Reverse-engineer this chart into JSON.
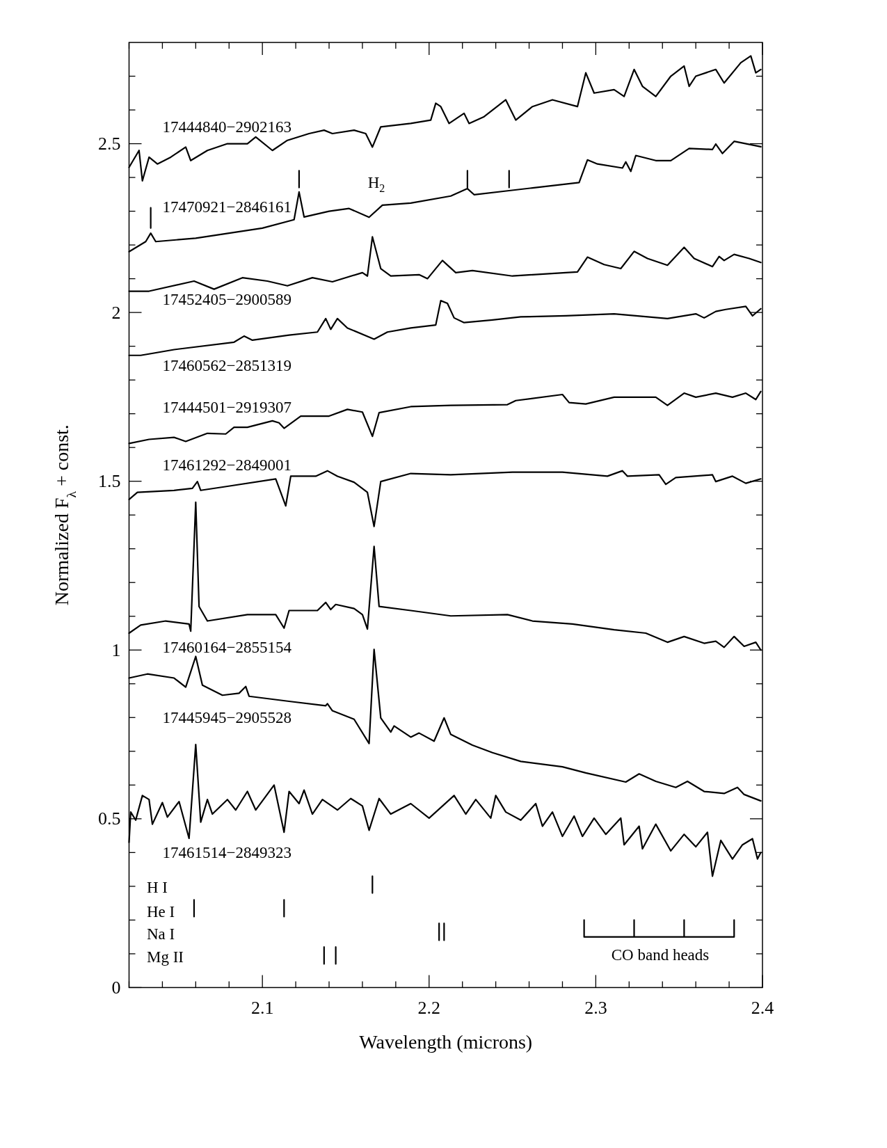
{
  "chart_data": {
    "type": "line",
    "xlabel": "Wavelength (microns)",
    "ylabel": "Normalized F$_{λ}$ + const.",
    "xlim": [
      2.02,
      2.4
    ],
    "ylim": [
      0,
      2.8
    ],
    "xticks": [
      {
        "value": 2.02,
        "label": null
      },
      {
        "value": 2.04,
        "label": null
      },
      {
        "value": 2.06,
        "label": null
      },
      {
        "value": 2.08,
        "label": null
      },
      2.1,
      {
        "value": 2.12,
        "label": null
      },
      {
        "value": 2.14,
        "label": null
      },
      {
        "value": 2.16,
        "label": null
      },
      {
        "value": 2.18,
        "label": null
      },
      2.2,
      {
        "value": 2.22,
        "label": null
      },
      {
        "value": 2.24,
        "label": null
      },
      {
        "value": 2.26,
        "label": null
      },
      {
        "value": 2.28,
        "label": null
      },
      2.3,
      {
        "value": 2.32,
        "label": null
      },
      {
        "value": 2.34,
        "label": null
      },
      {
        "value": 2.36,
        "label": null
      },
      {
        "value": 2.38,
        "label": null
      },
      2.4
    ],
    "yticks": [
      0,
      {
        "value": 0.1,
        "label": null
      },
      {
        "value": 0.2,
        "label": null
      },
      {
        "value": 0.3,
        "label": null
      },
      {
        "value": 0.4,
        "label": null
      },
      0.5,
      {
        "value": 0.6,
        "label": null
      },
      {
        "value": 0.7,
        "label": null
      },
      {
        "value": 0.8,
        "label": null
      },
      {
        "value": 0.9,
        "label": null
      },
      1,
      {
        "value": 1.1,
        "label": null
      },
      {
        "value": 1.2,
        "label": null
      },
      {
        "value": 1.3,
        "label": null
      },
      {
        "value": 1.4,
        "label": null
      },
      1.5,
      {
        "value": 1.6,
        "label": null
      },
      {
        "value": 1.7,
        "label": null
      },
      {
        "value": 1.8,
        "label": null
      },
      {
        "value": 1.9,
        "label": null
      },
      2,
      {
        "value": 2.1,
        "label": null
      },
      {
        "value": 2.2,
        "label": null
      },
      {
        "value": 2.3,
        "label": null
      },
      {
        "value": 2.4,
        "label": null
      },
      2.5,
      {
        "value": 2.6,
        "label": null
      },
      {
        "value": 2.7,
        "label": null
      }
    ],
    "series": [
      {
        "name": "17444840−2902163",
        "color": "#000000",
        "x": [
          2.02,
          2.026,
          2.028,
          2.032,
          2.037,
          2.045,
          2.054,
          2.057,
          2.067,
          2.079,
          2.091,
          2.096,
          2.106,
          2.115,
          2.128,
          2.137,
          2.142,
          2.155,
          2.162,
          2.166,
          2.171,
          2.189,
          2.201,
          2.204,
          2.207,
          2.212,
          2.221,
          2.224,
          2.233,
          2.246,
          2.252,
          2.262,
          2.274,
          2.289,
          2.294,
          2.299,
          2.311,
          2.317,
          2.323,
          2.328,
          2.336,
          2.345,
          2.353,
          2.356,
          2.36,
          2.372,
          2.377,
          2.387,
          2.393,
          2.396,
          2.399
        ],
        "values": [
          2.43,
          2.48,
          2.39,
          2.46,
          2.44,
          2.46,
          2.49,
          2.45,
          2.48,
          2.5,
          2.5,
          2.52,
          2.48,
          2.51,
          2.53,
          2.54,
          2.53,
          2.54,
          2.53,
          2.49,
          2.55,
          2.56,
          2.57,
          2.62,
          2.61,
          2.56,
          2.59,
          2.56,
          2.58,
          2.63,
          2.57,
          2.61,
          2.63,
          2.61,
          2.71,
          2.65,
          2.66,
          2.64,
          2.72,
          2.67,
          2.64,
          2.7,
          2.73,
          2.67,
          2.7,
          2.72,
          2.68,
          2.74,
          2.76,
          2.71,
          2.72
        ]
      },
      {
        "name": "17470921−2846161",
        "color": "#000000",
        "x": [
          2.02,
          2.03,
          2.033,
          2.036,
          2.06,
          2.1,
          2.119,
          2.122,
          2.125,
          2.14,
          2.152,
          2.164,
          2.172,
          2.189,
          2.213,
          2.223,
          2.227,
          2.248,
          2.262,
          2.29,
          2.295,
          2.301,
          2.316,
          2.318,
          2.321,
          2.324,
          2.336,
          2.345,
          2.356,
          2.37,
          2.372,
          2.376,
          2.383,
          2.399
        ],
        "values": [
          2.18,
          2.21,
          2.235,
          2.21,
          2.22,
          2.25,
          2.275,
          2.357,
          2.283,
          2.3,
          2.308,
          2.282,
          2.318,
          2.324,
          2.345,
          2.367,
          2.349,
          2.361,
          2.369,
          2.385,
          2.452,
          2.44,
          2.428,
          2.446,
          2.418,
          2.465,
          2.45,
          2.45,
          2.486,
          2.483,
          2.499,
          2.471,
          2.507,
          2.491
        ]
      },
      {
        "name": "17452405−2900589",
        "color": "#000000",
        "x": [
          2.02,
          2.032,
          2.059,
          2.071,
          2.088,
          2.103,
          2.115,
          2.13,
          2.142,
          2.16,
          2.163,
          2.166,
          2.171,
          2.177,
          2.194,
          2.199,
          2.208,
          2.216,
          2.226,
          2.25,
          2.262,
          2.282,
          2.289,
          2.295,
          2.305,
          2.315,
          2.323,
          2.331,
          2.343,
          2.353,
          2.359,
          2.37,
          2.374,
          2.377,
          2.383,
          2.392,
          2.399
        ],
        "values": [
          2.063,
          2.063,
          2.093,
          2.069,
          2.103,
          2.093,
          2.079,
          2.103,
          2.091,
          2.118,
          2.108,
          2.224,
          2.13,
          2.108,
          2.112,
          2.1,
          2.154,
          2.118,
          2.124,
          2.108,
          2.112,
          2.118,
          2.12,
          2.164,
          2.142,
          2.13,
          2.181,
          2.16,
          2.14,
          2.193,
          2.16,
          2.136,
          2.166,
          2.154,
          2.172,
          2.16,
          2.148
        ]
      },
      {
        "name": "17460562−2851319",
        "color": "#000000",
        "x": [
          2.02,
          2.027,
          2.047,
          2.083,
          2.089,
          2.094,
          2.116,
          2.133,
          2.138,
          2.141,
          2.145,
          2.151,
          2.167,
          2.175,
          2.189,
          2.204,
          2.207,
          2.211,
          2.215,
          2.221,
          2.238,
          2.255,
          2.282,
          2.311,
          2.343,
          2.36,
          2.365,
          2.372,
          2.378,
          2.39,
          2.394,
          2.399
        ],
        "values": [
          1.873,
          1.873,
          1.89,
          1.912,
          1.93,
          1.918,
          1.933,
          1.942,
          1.982,
          1.95,
          1.982,
          1.954,
          1.921,
          1.942,
          1.954,
          1.963,
          2.035,
          2.027,
          1.984,
          1.97,
          1.978,
          1.987,
          1.99,
          1.996,
          1.982,
          1.996,
          1.984,
          2.003,
          2.009,
          2.018,
          1.99,
          2.011
        ]
      },
      {
        "name": "17444501−2919307",
        "color": "#000000",
        "x": [
          2.02,
          2.032,
          2.047,
          2.054,
          2.067,
          2.078,
          2.083,
          2.091,
          2.106,
          2.11,
          2.113,
          2.123,
          2.14,
          2.151,
          2.16,
          2.166,
          2.17,
          2.189,
          2.213,
          2.247,
          2.252,
          2.28,
          2.284,
          2.294,
          2.311,
          2.336,
          2.343,
          2.353,
          2.36,
          2.372,
          2.382,
          2.39,
          2.396,
          2.399
        ],
        "values": [
          1.612,
          1.624,
          1.63,
          1.618,
          1.642,
          1.64,
          1.66,
          1.66,
          1.679,
          1.673,
          1.657,
          1.693,
          1.693,
          1.713,
          1.705,
          1.633,
          1.703,
          1.721,
          1.725,
          1.727,
          1.739,
          1.757,
          1.733,
          1.729,
          1.749,
          1.749,
          1.725,
          1.761,
          1.749,
          1.761,
          1.749,
          1.761,
          1.742,
          1.766
        ]
      },
      {
        "name": "17461292−2849001",
        "color": "#000000",
        "x": [
          2.02,
          2.025,
          2.047,
          2.058,
          2.061,
          2.063,
          2.079,
          2.108,
          2.114,
          2.117,
          2.132,
          2.139,
          2.145,
          2.155,
          2.163,
          2.167,
          2.171,
          2.189,
          2.213,
          2.25,
          2.28,
          2.307,
          2.316,
          2.319,
          2.338,
          2.342,
          2.348,
          2.37,
          2.372,
          2.382,
          2.39,
          2.399
        ],
        "values": [
          1.446,
          1.467,
          1.473,
          1.479,
          1.499,
          1.473,
          1.485,
          1.507,
          1.427,
          1.515,
          1.515,
          1.531,
          1.515,
          1.497,
          1.467,
          1.366,
          1.499,
          1.523,
          1.519,
          1.527,
          1.527,
          1.515,
          1.531,
          1.515,
          1.519,
          1.491,
          1.511,
          1.519,
          1.499,
          1.515,
          1.494,
          1.507
        ]
      },
      {
        "name": "17460164−2855154",
        "color": "#000000",
        "x": [
          2.02,
          2.027,
          2.042,
          2.056,
          2.057,
          2.06,
          2.062,
          2.067,
          2.091,
          2.108,
          2.113,
          2.116,
          2.133,
          2.138,
          2.141,
          2.144,
          2.155,
          2.16,
          2.163,
          2.167,
          2.17,
          2.189,
          2.213,
          2.247,
          2.262,
          2.286,
          2.311,
          2.33,
          2.343,
          2.353,
          2.365,
          2.372,
          2.377,
          2.383,
          2.389,
          2.396,
          2.399
        ],
        "values": [
          1.05,
          1.074,
          1.086,
          1.077,
          1.056,
          1.438,
          1.129,
          1.086,
          1.105,
          1.105,
          1.065,
          1.117,
          1.117,
          1.141,
          1.12,
          1.135,
          1.123,
          1.105,
          1.062,
          1.307,
          1.129,
          1.117,
          1.101,
          1.105,
          1.086,
          1.077,
          1.06,
          1.05,
          1.023,
          1.04,
          1.02,
          1.026,
          1.008,
          1.04,
          1.011,
          1.023,
          1.0
        ]
      },
      {
        "name": "17445945−2905528",
        "color": "#000000",
        "x": [
          2.02,
          2.031,
          2.047,
          2.054,
          2.06,
          2.064,
          2.076,
          2.086,
          2.09,
          2.092,
          2.116,
          2.138,
          2.139,
          2.142,
          2.155,
          2.164,
          2.167,
          2.171,
          2.177,
          2.179,
          2.189,
          2.194,
          2.203,
          2.209,
          2.213,
          2.226,
          2.238,
          2.255,
          2.28,
          2.294,
          2.318,
          2.326,
          2.336,
          2.348,
          2.355,
          2.365,
          2.377,
          2.385,
          2.389,
          2.399
        ],
        "values": [
          0.917,
          0.929,
          0.917,
          0.89,
          0.981,
          0.896,
          0.866,
          0.872,
          0.892,
          0.863,
          0.848,
          0.835,
          0.841,
          0.82,
          0.795,
          0.723,
          1.002,
          0.799,
          0.757,
          0.775,
          0.742,
          0.754,
          0.73,
          0.799,
          0.75,
          0.718,
          0.696,
          0.67,
          0.654,
          0.636,
          0.609,
          0.633,
          0.611,
          0.593,
          0.611,
          0.581,
          0.575,
          0.593,
          0.572,
          0.553
        ]
      },
      {
        "name": "17461514−2849323",
        "color": "#000000",
        "x": [
          2.02,
          2.021,
          2.024,
          2.028,
          2.032,
          2.034,
          2.04,
          2.043,
          2.05,
          2.056,
          2.06,
          2.063,
          2.067,
          2.07,
          2.079,
          2.084,
          2.091,
          2.096,
          2.107,
          2.113,
          2.116,
          2.122,
          2.125,
          2.13,
          2.136,
          2.145,
          2.153,
          2.16,
          2.164,
          2.17,
          2.177,
          2.189,
          2.2,
          2.215,
          2.222,
          2.228,
          2.237,
          2.24,
          2.246,
          2.255,
          2.264,
          2.268,
          2.274,
          2.28,
          2.287,
          2.292,
          2.299,
          2.306,
          2.315,
          2.317,
          2.326,
          2.328,
          2.336,
          2.345,
          2.353,
          2.36,
          2.367,
          2.37,
          2.375,
          2.382,
          2.388,
          2.394,
          2.397,
          2.399
        ],
        "values": [
          0.43,
          0.52,
          0.496,
          0.569,
          0.557,
          0.484,
          0.548,
          0.505,
          0.551,
          0.442,
          0.72,
          0.49,
          0.557,
          0.514,
          0.557,
          0.526,
          0.581,
          0.526,
          0.6,
          0.46,
          0.581,
          0.545,
          0.585,
          0.514,
          0.557,
          0.526,
          0.56,
          0.538,
          0.466,
          0.56,
          0.514,
          0.545,
          0.502,
          0.569,
          0.514,
          0.557,
          0.502,
          0.569,
          0.52,
          0.496,
          0.545,
          0.478,
          0.52,
          0.448,
          0.508,
          0.448,
          0.502,
          0.454,
          0.502,
          0.423,
          0.478,
          0.411,
          0.484,
          0.405,
          0.454,
          0.417,
          0.46,
          0.33,
          0.436,
          0.381,
          0.423,
          0.441,
          0.381,
          0.4
        ]
      },
      {
        "color": "#000000",
        "x": [
          2.033,
          2.033,
          null,
          2.122,
          2.122,
          null,
          2.223,
          2.223,
          null,
          2.248,
          2.248
        ],
        "values": [
          2.25,
          2.31,
          null,
          2.37,
          2.42,
          null,
          2.37,
          2.42,
          null,
          2.37,
          2.42
        ]
      },
      {
        "color": "#000000",
        "x": [
          2.166,
          2.166,
          null,
          2.059,
          2.059,
          null,
          2.113,
          2.113,
          null,
          2.206,
          2.206,
          null,
          2.209,
          2.209,
          null,
          2.137,
          2.137,
          null,
          2.144,
          2.144,
          null,
          2.293,
          2.293,
          2.383,
          2.383,
          null,
          2.323,
          2.323,
          null,
          2.353,
          2.353
        ],
        "values": [
          0.28,
          0.33,
          null,
          0.21,
          0.26,
          null,
          0.21,
          0.26,
          null,
          0.14,
          0.19,
          null,
          0.14,
          0.19,
          null,
          0.07,
          0.12,
          null,
          0.07,
          0.12,
          null,
          0.2,
          0.15,
          0.15,
          0.2,
          null,
          0.15,
          0.2,
          null,
          0.15,
          0.2
        ]
      }
    ],
    "annotations": [
      "H$_{2}$",
      "H I",
      "He I",
      "Na I",
      "Mg II",
      "CO band heads"
    ]
  }
}
